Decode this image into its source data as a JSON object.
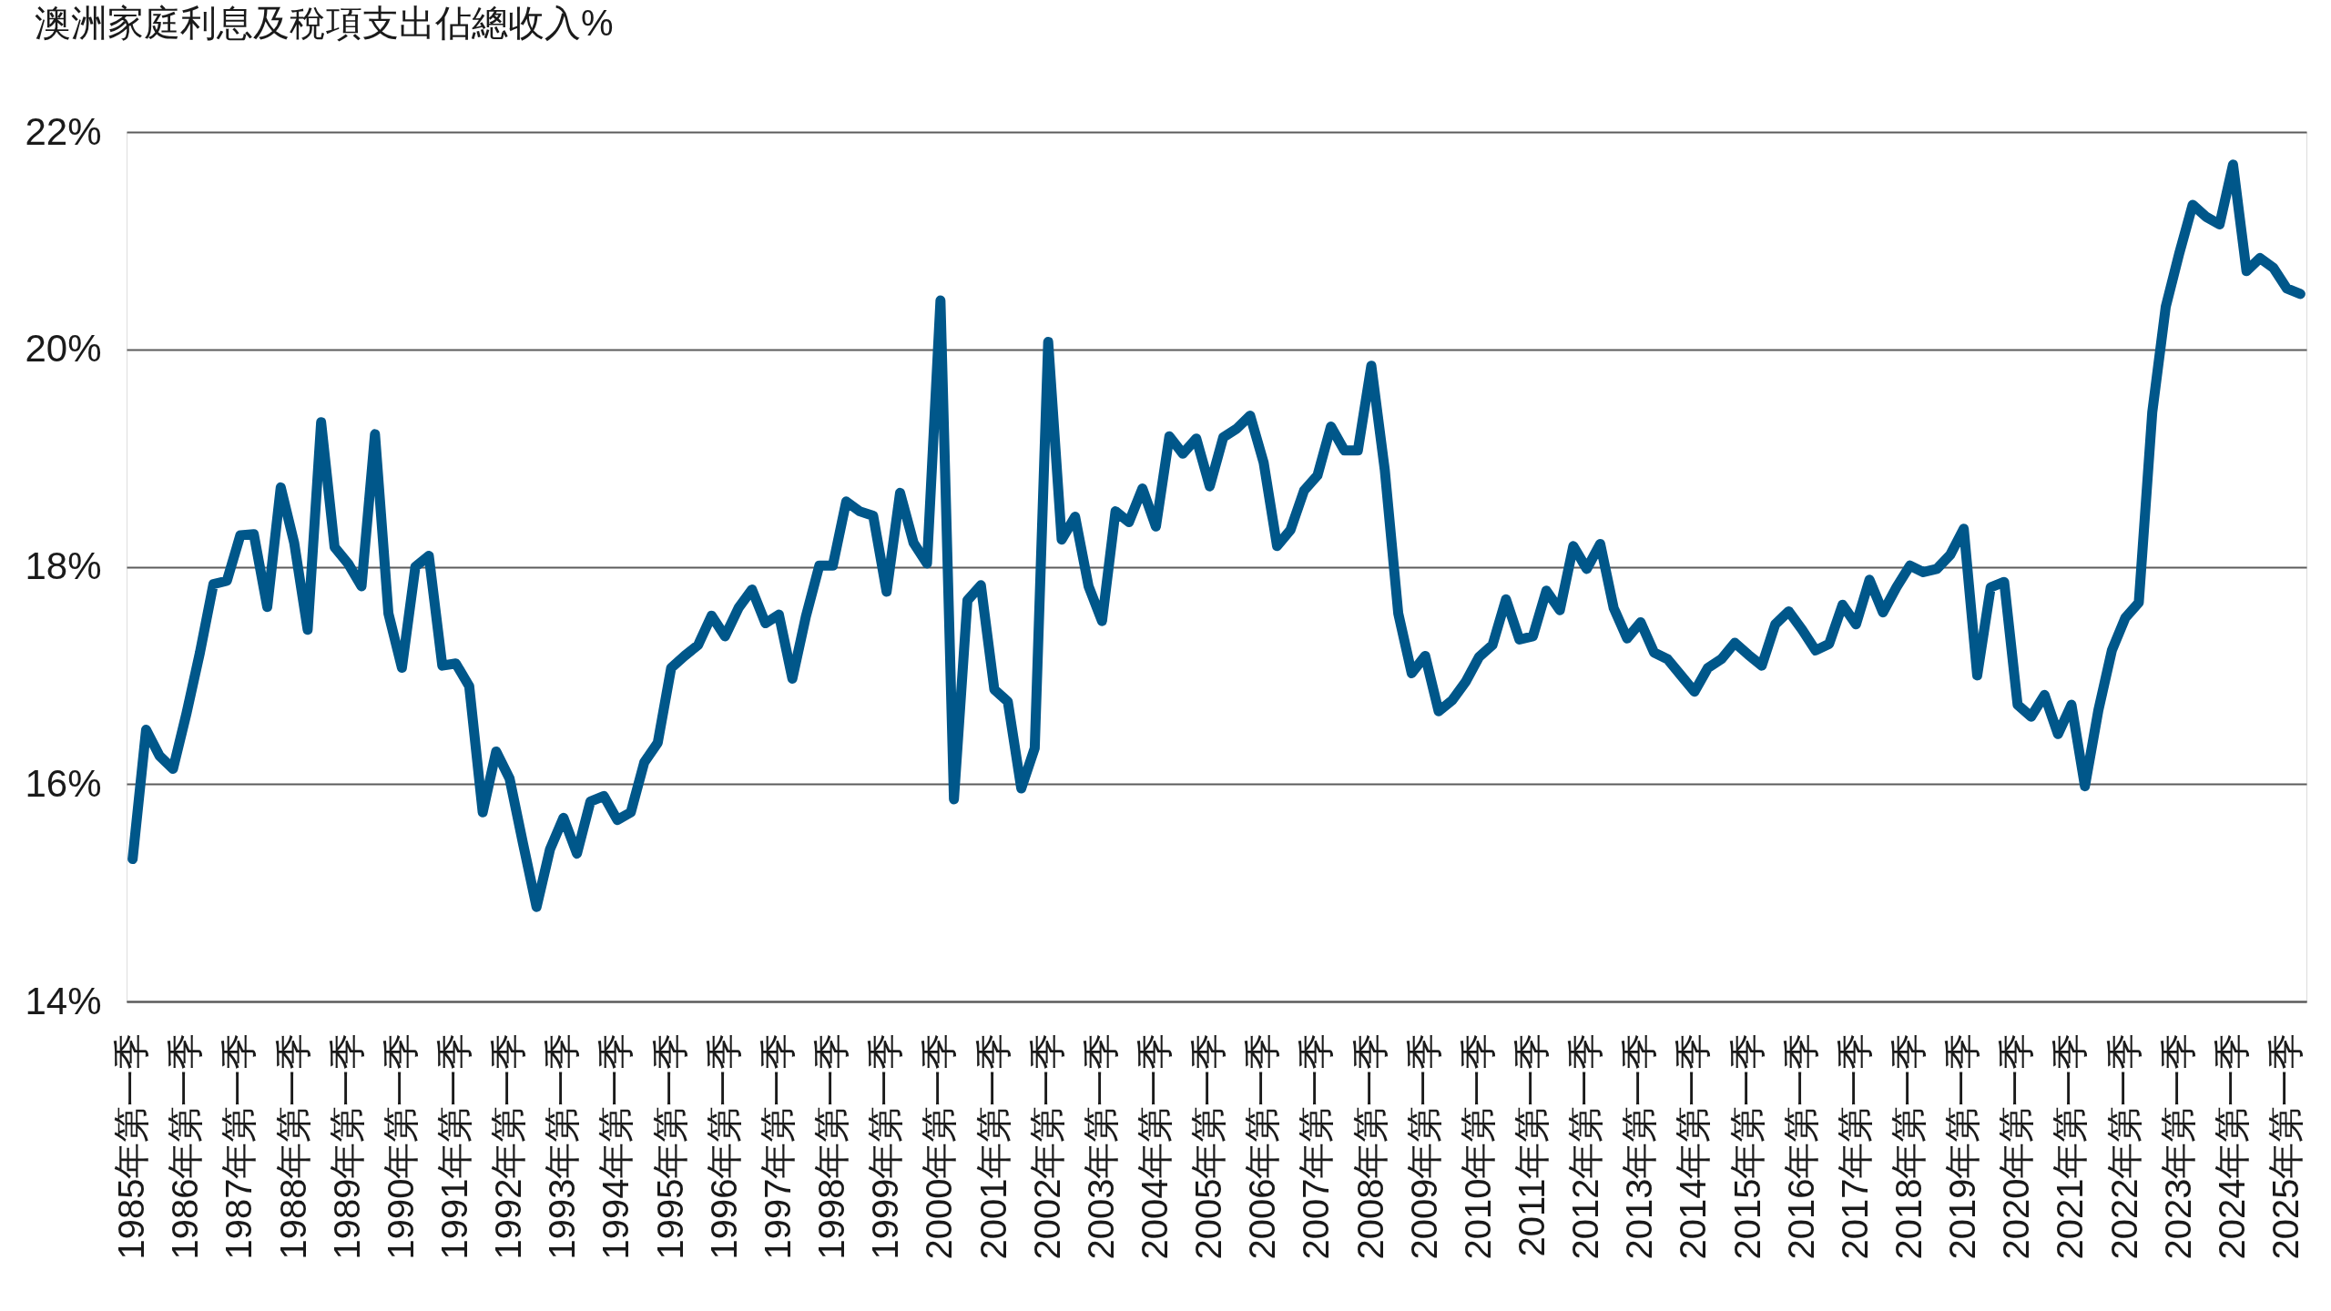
{
  "chart_data": {
    "type": "line",
    "title": "澳洲家庭利息及稅項支出佔總收入%",
    "categories": [
      "1985年第一季",
      null,
      null,
      null,
      "1986年第一季",
      null,
      null,
      null,
      "1987年第一季",
      null,
      null,
      null,
      "1988年第一季",
      null,
      null,
      null,
      "1989年第一季",
      null,
      null,
      null,
      "1990年第一季",
      null,
      null,
      null,
      "1991年第一季",
      null,
      null,
      null,
      "1992年第一季",
      null,
      null,
      null,
      "1993年第一季",
      null,
      null,
      null,
      "1994年第一季",
      null,
      null,
      null,
      "1995年第一季",
      null,
      null,
      null,
      "1996年第一季",
      null,
      null,
      null,
      "1997年第一季",
      null,
      null,
      null,
      "1998年第一季",
      null,
      null,
      null,
      "1999年第一季",
      null,
      null,
      null,
      "2000年第一季",
      null,
      null,
      null,
      "2001年第一季",
      null,
      null,
      null,
      "2002年第一季",
      null,
      null,
      null,
      "2003年第一季",
      null,
      null,
      null,
      "2004年第一季",
      null,
      null,
      null,
      "2005年第一季",
      null,
      null,
      null,
      "2006年第一季",
      null,
      null,
      null,
      "2007年第一季",
      null,
      null,
      null,
      "2008年第一季",
      null,
      null,
      null,
      "2009年第一季",
      null,
      null,
      null,
      "2010年第一季",
      null,
      null,
      null,
      "2011年第一季",
      null,
      null,
      null,
      "2012年第一季",
      null,
      null,
      null,
      "2013年第一季",
      null,
      null,
      null,
      "2014年第一季",
      null,
      null,
      null,
      "2015年第一季",
      null,
      null,
      null,
      "2016年第一季",
      null,
      null,
      null,
      "2017年第一季",
      null,
      null,
      null,
      "2018年第一季",
      null,
      null,
      null,
      "2019年第一季",
      null,
      null,
      null,
      "2020年第一季",
      null,
      null,
      null,
      "2021年第一季",
      null,
      null,
      null,
      "2022年第一季",
      null,
      null,
      null,
      "2023年第一季",
      null,
      null,
      null,
      "2024年第一季",
      null,
      null,
      null,
      "2025年第一季",
      null
    ],
    "series": [
      {
        "color": "#00578a",
        "values": [
          15.31,
          16.5,
          16.26,
          16.14,
          16.65,
          17.21,
          17.84,
          17.87,
          18.29,
          18.3,
          17.63,
          18.73,
          18.22,
          17.42,
          19.33,
          18.18,
          18.03,
          17.82,
          19.22,
          17.57,
          17.07,
          18.0,
          18.1,
          17.09,
          17.11,
          16.9,
          15.74,
          16.3,
          16.05,
          15.45,
          14.87,
          15.4,
          15.69,
          15.36,
          15.84,
          15.89,
          15.67,
          15.74,
          16.2,
          16.38,
          17.07,
          17.18,
          17.28,
          17.55,
          17.36,
          17.62,
          17.79,
          17.48,
          17.56,
          16.97,
          17.54,
          18.01,
          18.01,
          18.6,
          18.51,
          18.47,
          17.77,
          18.68,
          18.22,
          18.03,
          20.45,
          15.86,
          17.69,
          17.83,
          16.87,
          16.76,
          15.96,
          16.33,
          20.07,
          18.25,
          18.46,
          17.82,
          17.5,
          18.51,
          18.41,
          18.72,
          18.37,
          19.2,
          19.04,
          19.18,
          18.74,
          19.19,
          19.27,
          19.39,
          18.96,
          18.19,
          18.34,
          18.7,
          18.84,
          19.29,
          19.07,
          19.07,
          19.85,
          18.89,
          17.57,
          17.02,
          17.18,
          16.67,
          16.77,
          16.94,
          17.17,
          17.28,
          17.7,
          17.33,
          17.36,
          17.78,
          17.6,
          18.19,
          17.98,
          18.21,
          17.62,
          17.34,
          17.49,
          17.21,
          17.15,
          17.0,
          16.85,
          17.07,
          17.15,
          17.3,
          17.19,
          17.09,
          17.47,
          17.59,
          17.42,
          17.23,
          17.29,
          17.65,
          17.47,
          17.88,
          17.58,
          17.81,
          18.01,
          17.95,
          17.98,
          18.11,
          18.35,
          17.0,
          17.81,
          17.86,
          16.73,
          16.62,
          16.82,
          16.46,
          16.73,
          15.98,
          16.68,
          17.23,
          17.53,
          17.67,
          19.42,
          20.39,
          20.88,
          21.33,
          21.22,
          21.15,
          21.7,
          20.72,
          20.84,
          20.75,
          20.56,
          20.51
        ]
      }
    ],
    "ylim": [
      14,
      22
    ],
    "yticks": [
      {
        "value": 14,
        "label": "14%"
      },
      {
        "value": 16,
        "label": "16%"
      },
      {
        "value": 18,
        "label": "18%"
      },
      {
        "value": 20,
        "label": "20%"
      },
      {
        "value": 22,
        "label": "22%"
      }
    ],
    "grid": "y",
    "line_style": "solid"
  }
}
